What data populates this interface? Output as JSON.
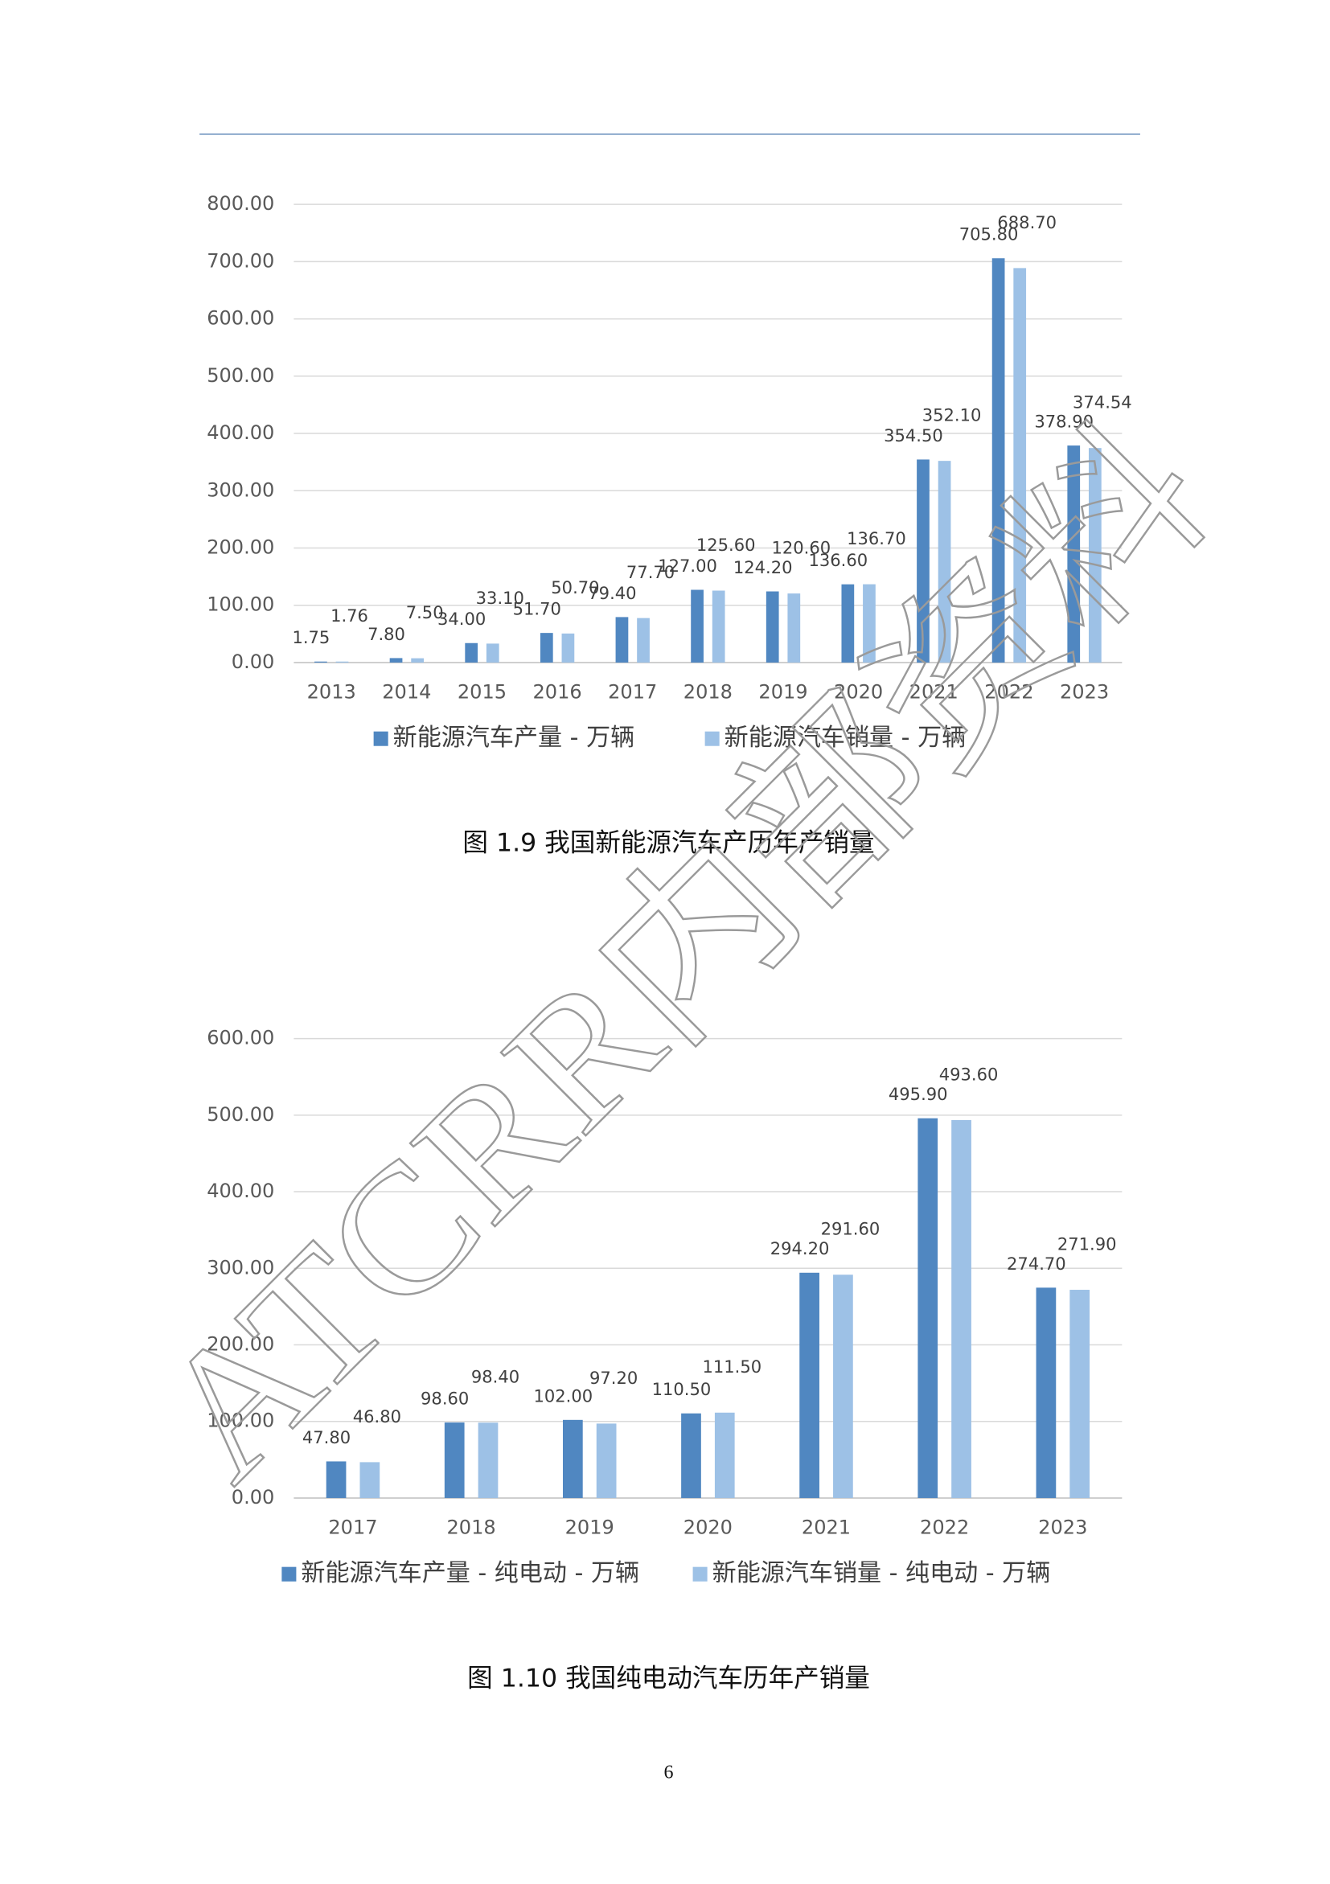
{
  "chart_data": [
    {
      "type": "bar",
      "categories": [
        "2013",
        "2014",
        "2015",
        "2016",
        "2017",
        "2018",
        "2019",
        "2020",
        "2021",
        "2022",
        "2023"
      ],
      "series": [
        {
          "name": "新能源汽车产量 - 万辆",
          "color": "#5087c1",
          "values": [
            1.75,
            7.8,
            34,
            51.7,
            79.4,
            127,
            124.2,
            136.6,
            354.5,
            705.8,
            378.9
          ],
          "value_labels": [
            "1.75",
            "7.80",
            "34.00",
            "51.70",
            "79.40",
            "127.00",
            "124.20",
            "136.60",
            "354.50",
            "705.80",
            "378.90"
          ]
        },
        {
          "name": "新能源汽车销量 - 万辆",
          "color": "#9dc1e6",
          "values": [
            1.76,
            7.5,
            33.1,
            50.7,
            77.7,
            125.6,
            120.6,
            136.7,
            352.1,
            688.7,
            374.54
          ],
          "value_labels": [
            "1.76",
            "7.50",
            "33.10",
            "50.70",
            "77.70",
            "125.60",
            "120.60",
            "136.70",
            "352.10",
            "688.70",
            "374.54"
          ]
        }
      ],
      "ylim": [
        0,
        800
      ],
      "yticks": [
        {
          "value": 0,
          "label": "0.00"
        },
        {
          "value": 100,
          "label": "100.00"
        },
        {
          "value": 200,
          "label": "200.00"
        },
        {
          "value": 300,
          "label": "300.00"
        },
        {
          "value": 400,
          "label": "400.00"
        },
        {
          "value": 500,
          "label": "500.00"
        },
        {
          "value": 600,
          "label": "600.00"
        },
        {
          "value": 700,
          "label": "700.00"
        },
        {
          "value": 800,
          "label": "800.00"
        }
      ],
      "grid": true,
      "legend": "bottom",
      "caption": "图 1.9 我国新能源汽车产历年产销量"
    },
    {
      "type": "bar",
      "categories": [
        "2017",
        "2018",
        "2019",
        "2020",
        "2021",
        "2022",
        "2023"
      ],
      "series": [
        {
          "name": "新能源汽车产量 - 纯电动 - 万辆",
          "color": "#5087c1",
          "values": [
            47.8,
            98.6,
            102,
            110.5,
            294.2,
            495.9,
            274.7
          ],
          "value_labels": [
            "47.80",
            "98.60",
            "102.00",
            "110.50",
            "294.20",
            "495.90",
            "274.70"
          ]
        },
        {
          "name": "新能源汽车销量 - 纯电动 - 万辆",
          "color": "#9dc1e6",
          "values": [
            46.8,
            98.4,
            97.2,
            111.5,
            291.6,
            493.6,
            271.9
          ],
          "value_labels": [
            "46.80",
            "98.40",
            "97.20",
            "111.50",
            "291.60",
            "493.60",
            "271.90"
          ]
        }
      ],
      "ylim": [
        0,
        600
      ],
      "yticks": [
        {
          "value": 0,
          "label": "0.00"
        },
        {
          "value": 100,
          "label": "100.00"
        },
        {
          "value": 200,
          "label": "200.00"
        },
        {
          "value": 300,
          "label": "300.00"
        },
        {
          "value": 400,
          "label": "400.00"
        },
        {
          "value": 500,
          "label": "500.00"
        },
        {
          "value": 600,
          "label": "600.00"
        }
      ],
      "grid": true,
      "legend": "bottom",
      "caption": "图 1.10 我国纯电动汽车历年产销量"
    }
  ],
  "page_number": "6",
  "watermark": "ATCRR内部资料"
}
